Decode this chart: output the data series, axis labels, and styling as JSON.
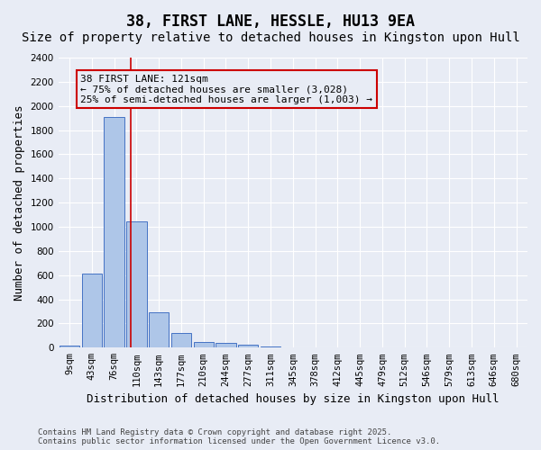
{
  "title": "38, FIRST LANE, HESSLE, HU13 9EA",
  "subtitle": "Size of property relative to detached houses in Kingston upon Hull",
  "xlabel": "Distribution of detached houses by size in Kingston upon Hull",
  "ylabel": "Number of detached properties",
  "categories": [
    "9sqm",
    "43sqm",
    "76sqm",
    "110sqm",
    "143sqm",
    "177sqm",
    "210sqm",
    "244sqm",
    "277sqm",
    "311sqm",
    "345sqm",
    "378sqm",
    "412sqm",
    "445sqm",
    "479sqm",
    "512sqm",
    "546sqm",
    "579sqm",
    "613sqm",
    "646sqm",
    "680sqm"
  ],
  "values": [
    20,
    610,
    1910,
    1045,
    295,
    120,
    50,
    40,
    28,
    10,
    0,
    0,
    0,
    0,
    0,
    0,
    0,
    0,
    0,
    0,
    0
  ],
  "bar_color": "#aec6e8",
  "bar_edge_color": "#4472c4",
  "bg_color": "#e8ecf5",
  "grid_color": "#ffffff",
  "annotation_box_text": "38 FIRST LANE: 121sqm\n← 75% of detached houses are smaller (3,028)\n25% of semi-detached houses are larger (1,003) →",
  "annotation_box_color": "#cc0000",
  "vline_x_index": 2.75,
  "ylim": [
    0,
    2400
  ],
  "yticks": [
    0,
    200,
    400,
    600,
    800,
    1000,
    1200,
    1400,
    1600,
    1800,
    2000,
    2200,
    2400
  ],
  "footer_text": "Contains HM Land Registry data © Crown copyright and database right 2025.\nContains public sector information licensed under the Open Government Licence v3.0.",
  "title_fontsize": 12,
  "subtitle_fontsize": 10,
  "xlabel_fontsize": 9,
  "ylabel_fontsize": 9,
  "tick_fontsize": 7.5,
  "annotation_fontsize": 8,
  "footer_fontsize": 6.5
}
